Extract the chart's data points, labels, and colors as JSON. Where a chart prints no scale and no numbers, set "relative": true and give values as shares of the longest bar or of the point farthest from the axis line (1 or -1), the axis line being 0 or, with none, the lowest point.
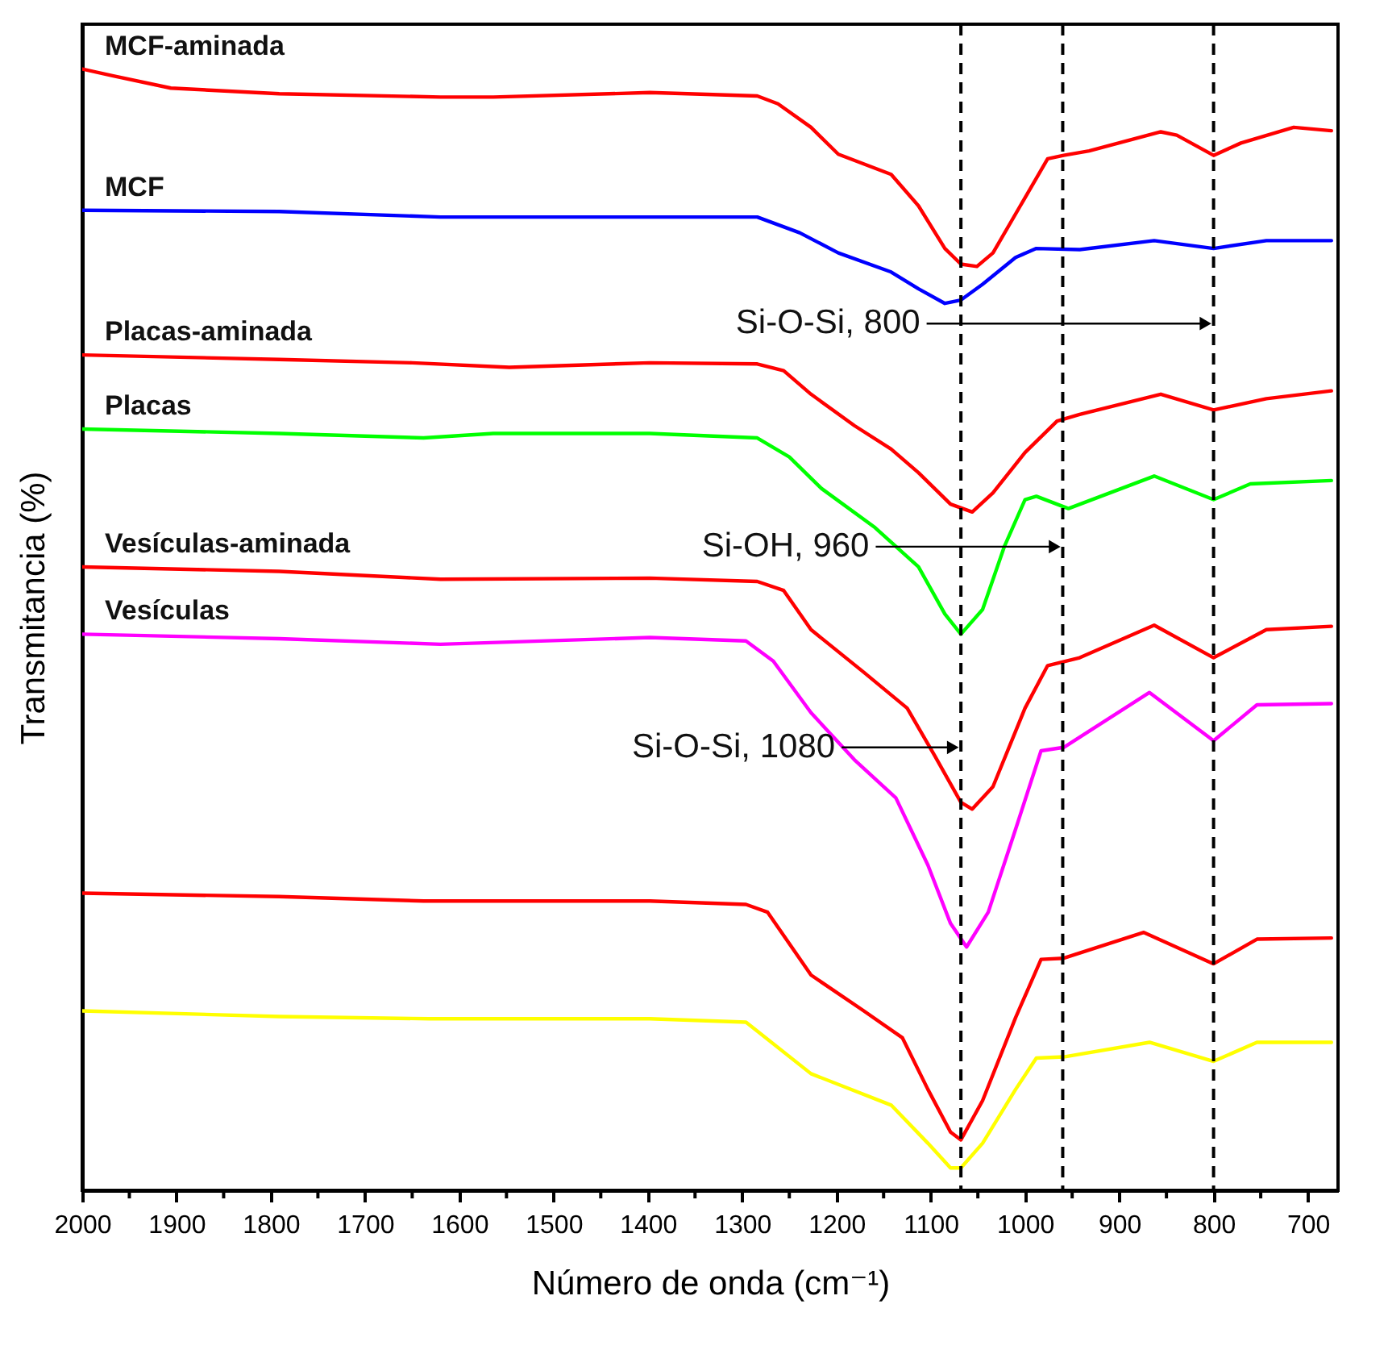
{
  "chart_data": {
    "type": "line",
    "relative": true,
    "xlabel": "Número de onda (cm⁻¹)",
    "ylabel": "Transmitancia (%)",
    "xlim": [
      2000,
      668
    ],
    "xticks": [
      2000,
      {
        "value": 1950,
        "label": null
      },
      1900,
      {
        "value": 1850,
        "label": null
      },
      1800,
      {
        "value": 1750,
        "label": null
      },
      1700,
      {
        "value": 1650,
        "label": null
      },
      1600,
      {
        "value": 1550,
        "label": null
      },
      1500,
      {
        "value": 1450,
        "label": null
      },
      1400,
      {
        "value": 1350,
        "label": null
      },
      1300,
      {
        "value": 1250,
        "label": null
      },
      1200,
      {
        "value": 1150,
        "label": null
      },
      1100,
      {
        "value": 1050,
        "label": null
      },
      1000,
      {
        "value": 950,
        "label": null
      },
      900,
      {
        "value": 850,
        "label": null
      },
      800,
      {
        "value": 750,
        "label": null
      },
      700
    ],
    "grid": false,
    "legend": false,
    "marker": "none",
    "line_style": "solid",
    "series": [
      {
        "name": "MCF-aminada",
        "color": "#ff0000",
        "x": [
          2000,
          1968,
          1906,
          1791,
          1620,
          1564,
          1398,
          1284,
          1262,
          1227,
          1198,
          1142,
          1113,
          1085,
          1068,
          1051,
          1034,
          1005,
          976,
          959,
          932,
          856,
          839,
          800,
          771,
          715,
          675
        ],
        "values": [
          1.0,
          0.994,
          0.983,
          0.978,
          0.975,
          0.975,
          0.979,
          0.976,
          0.969,
          0.948,
          0.924,
          0.906,
          0.878,
          0.84,
          0.826,
          0.824,
          0.836,
          0.878,
          0.92,
          0.923,
          0.927,
          0.944,
          0.941,
          0.923,
          0.934,
          0.948,
          0.945
        ]
      },
      {
        "name": "MCF",
        "color": "#0000ff",
        "x": [
          2000,
          1791,
          1620,
          1398,
          1284,
          1239,
          1198,
          1142,
          1113,
          1085,
          1068,
          1045,
          1010,
          988,
          942,
          863,
          800,
          744,
          675
        ],
        "values": [
          0.874,
          0.873,
          0.868,
          0.868,
          0.868,
          0.854,
          0.836,
          0.819,
          0.804,
          0.791,
          0.794,
          0.808,
          0.832,
          0.84,
          0.839,
          0.847,
          0.84,
          0.847,
          0.847
        ]
      },
      {
        "name": "Placas-aminada",
        "color": "#ff0000",
        "x": [
          2000,
          1791,
          1650,
          1547,
          1398,
          1284,
          1256,
          1227,
          1181,
          1142,
          1113,
          1079,
          1056,
          1034,
          1000,
          966,
          942,
          856,
          800,
          744,
          675
        ],
        "values": [
          0.745,
          0.741,
          0.738,
          0.734,
          0.738,
          0.737,
          0.731,
          0.71,
          0.682,
          0.661,
          0.64,
          0.612,
          0.605,
          0.622,
          0.658,
          0.686,
          0.692,
          0.71,
          0.696,
          0.706,
          0.713
        ]
      },
      {
        "name": "Placas",
        "color": "#00ff00",
        "x": [
          2000,
          1791,
          1638,
          1564,
          1398,
          1284,
          1250,
          1216,
          1159,
          1113,
          1085,
          1068,
          1045,
          1022,
          1000,
          988,
          954,
          863,
          800,
          761,
          675
        ],
        "values": [
          0.679,
          0.675,
          0.671,
          0.675,
          0.675,
          0.671,
          0.654,
          0.626,
          0.591,
          0.556,
          0.514,
          0.496,
          0.518,
          0.574,
          0.616,
          0.619,
          0.608,
          0.637,
          0.616,
          0.63,
          0.633
        ]
      },
      {
        "name": "Vesículas-aminada",
        "color": "#ff0000",
        "x": [
          2000,
          1791,
          1620,
          1398,
          1284,
          1256,
          1227,
          1171,
          1125,
          1096,
          1068,
          1056,
          1034,
          1000,
          976,
          942,
          863,
          800,
          744,
          675
        ],
        "values": [
          0.556,
          0.552,
          0.545,
          0.546,
          0.543,
          0.535,
          0.5,
          0.462,
          0.43,
          0.388,
          0.346,
          0.34,
          0.36,
          0.43,
          0.468,
          0.475,
          0.504,
          0.475,
          0.5,
          0.503
        ]
      },
      {
        "name": "Vesículas",
        "color": "#ff00ff",
        "x": [
          2000,
          1791,
          1620,
          1398,
          1296,
          1267,
          1227,
          1181,
          1137,
          1103,
          1079,
          1062,
          1039,
          1010,
          983,
          959,
          868,
          800,
          754,
          675
        ],
        "values": [
          0.496,
          0.492,
          0.487,
          0.493,
          0.49,
          0.472,
          0.426,
          0.384,
          0.35,
          0.29,
          0.238,
          0.217,
          0.248,
          0.322,
          0.392,
          0.395,
          0.444,
          0.401,
          0.433,
          0.434
        ]
      },
      {
        "color": "#ff0000",
        "x": [
          2000,
          1791,
          1638,
          1398,
          1296,
          1273,
          1227,
          1171,
          1130,
          1103,
          1079,
          1068,
          1045,
          1010,
          983,
          959,
          874,
          800,
          754,
          675
        ],
        "values": [
          0.265,
          0.262,
          0.258,
          0.258,
          0.255,
          0.248,
          0.192,
          0.16,
          0.136,
          0.09,
          0.052,
          0.045,
          0.08,
          0.154,
          0.206,
          0.207,
          0.23,
          0.202,
          0.224,
          0.225
        ]
      },
      {
        "color": "#ffff00",
        "x": [
          2000,
          1791,
          1632,
          1398,
          1296,
          1227,
          1142,
          1103,
          1079,
          1068,
          1045,
          1010,
          988,
          959,
          868,
          800,
          754,
          675
        ],
        "values": [
          0.16,
          0.155,
          0.153,
          0.153,
          0.15,
          0.104,
          0.076,
          0.042,
          0.02,
          0.02,
          0.042,
          0.09,
          0.118,
          0.119,
          0.132,
          0.115,
          0.132,
          0.132
        ]
      }
    ],
    "ref_lines": [
      {
        "axis": "x",
        "value": 1068,
        "color": "#000000",
        "line_style": "dashed"
      },
      {
        "axis": "x",
        "value": 960,
        "color": "#000000",
        "line_style": "dashed"
      },
      {
        "axis": "x",
        "value": 800,
        "color": "#000000",
        "line_style": "dashed"
      }
    ],
    "annotations": [
      {
        "text": "Si-O-Si, 800",
        "x": 800,
        "y": 0.773
      },
      {
        "text": "Si-OH, 960",
        "x": 960,
        "y": 0.574
      },
      {
        "text": "Si-O-Si, 1080",
        "x": 1068,
        "y": 0.395
      }
    ]
  }
}
